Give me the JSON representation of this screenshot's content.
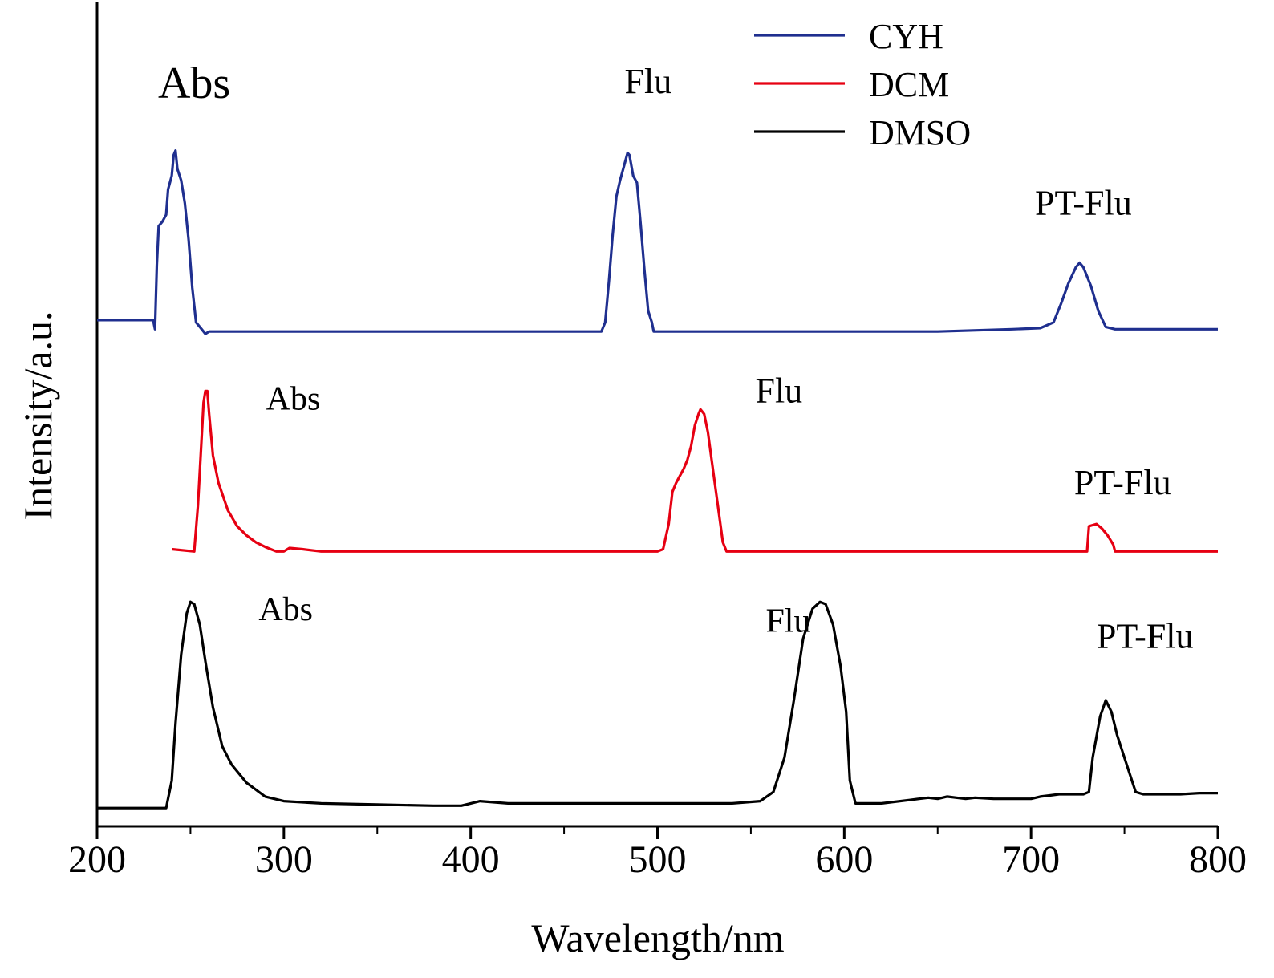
{
  "chart_data": {
    "type": "line",
    "xlabel": "Wavelength/nm",
    "ylabel": "Intensity/a.u.",
    "xlim": [
      200,
      800
    ],
    "ylim": [
      0,
      3.6
    ],
    "x_ticks": [
      "200",
      "300",
      "400",
      "500",
      "600",
      "700",
      "800"
    ],
    "y_ticks_shown": false,
    "legend": {
      "position": "top-right",
      "entries": [
        {
          "label": "CYH",
          "color": "#1f2f8f"
        },
        {
          "label": "DCM",
          "color": "#e60012"
        },
        {
          "label": "DMSO",
          "color": "#000000"
        }
      ]
    },
    "series": [
      {
        "name": "CYH",
        "color": "#1f2f8f",
        "points": [
          [
            200,
            2.21
          ],
          [
            230,
            2.21
          ],
          [
            231,
            2.17
          ],
          [
            232,
            2.45
          ],
          [
            233,
            2.62
          ],
          [
            235,
            2.64
          ],
          [
            237,
            2.67
          ],
          [
            238,
            2.78
          ],
          [
            240,
            2.84
          ],
          [
            241,
            2.93
          ],
          [
            242,
            2.95
          ],
          [
            243,
            2.87
          ],
          [
            245,
            2.82
          ],
          [
            247,
            2.72
          ],
          [
            249,
            2.56
          ],
          [
            251,
            2.35
          ],
          [
            253,
            2.2
          ],
          [
            255,
            2.18
          ],
          [
            258,
            2.15
          ],
          [
            260,
            2.16
          ],
          [
            300,
            2.16
          ],
          [
            400,
            2.16
          ],
          [
            470,
            2.16
          ],
          [
            472,
            2.2
          ],
          [
            474,
            2.38
          ],
          [
            476,
            2.58
          ],
          [
            478,
            2.75
          ],
          [
            480,
            2.82
          ],
          [
            482,
            2.88
          ],
          [
            484,
            2.94
          ],
          [
            485,
            2.93
          ],
          [
            487,
            2.84
          ],
          [
            489,
            2.81
          ],
          [
            491,
            2.63
          ],
          [
            493,
            2.43
          ],
          [
            495,
            2.25
          ],
          [
            497,
            2.2
          ],
          [
            498,
            2.16
          ],
          [
            550,
            2.16
          ],
          [
            600,
            2.16
          ],
          [
            650,
            2.16
          ],
          [
            690,
            2.17
          ],
          [
            705,
            2.175
          ],
          [
            712,
            2.2
          ],
          [
            716,
            2.28
          ],
          [
            720,
            2.37
          ],
          [
            724,
            2.44
          ],
          [
            726,
            2.46
          ],
          [
            728,
            2.44
          ],
          [
            732,
            2.36
          ],
          [
            736,
            2.25
          ],
          [
            740,
            2.18
          ],
          [
            745,
            2.17
          ],
          [
            770,
            2.17
          ],
          [
            800,
            2.17
          ]
        ]
      },
      {
        "name": "DCM",
        "color": "#e60012",
        "points": [
          [
            240,
            1.21
          ],
          [
            252,
            1.2
          ],
          [
            254,
            1.4
          ],
          [
            256,
            1.7
          ],
          [
            257,
            1.85
          ],
          [
            258,
            1.9
          ],
          [
            259,
            1.9
          ],
          [
            260,
            1.8
          ],
          [
            262,
            1.62
          ],
          [
            265,
            1.5
          ],
          [
            270,
            1.38
          ],
          [
            275,
            1.31
          ],
          [
            280,
            1.27
          ],
          [
            285,
            1.24
          ],
          [
            290,
            1.22
          ],
          [
            293,
            1.21
          ],
          [
            296,
            1.2
          ],
          [
            300,
            1.2
          ],
          [
            303,
            1.215
          ],
          [
            310,
            1.21
          ],
          [
            320,
            1.2
          ],
          [
            400,
            1.2
          ],
          [
            480,
            1.2
          ],
          [
            500,
            1.2
          ],
          [
            503,
            1.21
          ],
          [
            506,
            1.32
          ],
          [
            508,
            1.46
          ],
          [
            510,
            1.5
          ],
          [
            512,
            1.53
          ],
          [
            514,
            1.56
          ],
          [
            516,
            1.6
          ],
          [
            518,
            1.66
          ],
          [
            520,
            1.75
          ],
          [
            522,
            1.8
          ],
          [
            523,
            1.82
          ],
          [
            525,
            1.8
          ],
          [
            527,
            1.72
          ],
          [
            529,
            1.6
          ],
          [
            532,
            1.42
          ],
          [
            535,
            1.24
          ],
          [
            537,
            1.2
          ],
          [
            540,
            1.2
          ],
          [
            600,
            1.2
          ],
          [
            700,
            1.2
          ],
          [
            727,
            1.2
          ],
          [
            730,
            1.2
          ],
          [
            731,
            1.31
          ],
          [
            735,
            1.32
          ],
          [
            738,
            1.3
          ],
          [
            741,
            1.27
          ],
          [
            744,
            1.23
          ],
          [
            745,
            1.2
          ],
          [
            770,
            1.2
          ],
          [
            800,
            1.2
          ]
        ]
      },
      {
        "name": "DMSO",
        "color": "#000000",
        "points": [
          [
            200,
            0.08
          ],
          [
            237,
            0.08
          ],
          [
            240,
            0.2
          ],
          [
            242,
            0.45
          ],
          [
            245,
            0.75
          ],
          [
            248,
            0.93
          ],
          [
            250,
            0.98
          ],
          [
            252,
            0.97
          ],
          [
            255,
            0.88
          ],
          [
            258,
            0.72
          ],
          [
            262,
            0.52
          ],
          [
            267,
            0.35
          ],
          [
            272,
            0.27
          ],
          [
            280,
            0.19
          ],
          [
            290,
            0.13
          ],
          [
            300,
            0.11
          ],
          [
            320,
            0.1
          ],
          [
            350,
            0.095
          ],
          [
            380,
            0.09
          ],
          [
            395,
            0.09
          ],
          [
            400,
            0.1
          ],
          [
            405,
            0.11
          ],
          [
            420,
            0.1
          ],
          [
            500,
            0.1
          ],
          [
            540,
            0.1
          ],
          [
            555,
            0.11
          ],
          [
            562,
            0.15
          ],
          [
            568,
            0.3
          ],
          [
            573,
            0.55
          ],
          [
            578,
            0.82
          ],
          [
            583,
            0.95
          ],
          [
            587,
            0.98
          ],
          [
            590,
            0.97
          ],
          [
            594,
            0.88
          ],
          [
            598,
            0.7
          ],
          [
            601,
            0.5
          ],
          [
            603,
            0.2
          ],
          [
            606,
            0.1
          ],
          [
            620,
            0.1
          ],
          [
            635,
            0.115
          ],
          [
            640,
            0.12
          ],
          [
            645,
            0.125
          ],
          [
            650,
            0.12
          ],
          [
            655,
            0.13
          ],
          [
            660,
            0.125
          ],
          [
            665,
            0.12
          ],
          [
            670,
            0.125
          ],
          [
            680,
            0.12
          ],
          [
            700,
            0.12
          ],
          [
            705,
            0.13
          ],
          [
            710,
            0.135
          ],
          [
            715,
            0.14
          ],
          [
            725,
            0.14
          ],
          [
            728,
            0.14
          ],
          [
            731,
            0.15
          ],
          [
            733,
            0.3
          ],
          [
            737,
            0.48
          ],
          [
            740,
            0.55
          ],
          [
            743,
            0.5
          ],
          [
            746,
            0.4
          ],
          [
            752,
            0.25
          ],
          [
            756,
            0.15
          ],
          [
            760,
            0.14
          ],
          [
            780,
            0.14
          ],
          [
            790,
            0.145
          ],
          [
            800,
            0.145
          ]
        ]
      }
    ],
    "annotations": [
      {
        "text": "Abs",
        "series": "CYH",
        "x": 252,
        "y": 3.18
      },
      {
        "text": "Flu",
        "series": "CYH",
        "x": 495,
        "y": 3.2
      },
      {
        "text": "PT-Flu",
        "series": "CYH",
        "x": 728,
        "y": 2.67
      },
      {
        "text": "Abs",
        "series": "DCM",
        "x": 305,
        "y": 1.82
      },
      {
        "text": "Flu",
        "series": "DCM",
        "x": 565,
        "y": 1.85
      },
      {
        "text": "PT-Flu",
        "series": "DCM",
        "x": 749,
        "y": 1.45
      },
      {
        "text": "Abs",
        "series": "DMSO",
        "x": 301,
        "y": 0.9
      },
      {
        "text": "Flu",
        "series": "DMSO",
        "x": 570,
        "y": 0.85
      },
      {
        "text": "PT-Flu",
        "series": "DMSO",
        "x": 761,
        "y": 0.78
      }
    ]
  }
}
